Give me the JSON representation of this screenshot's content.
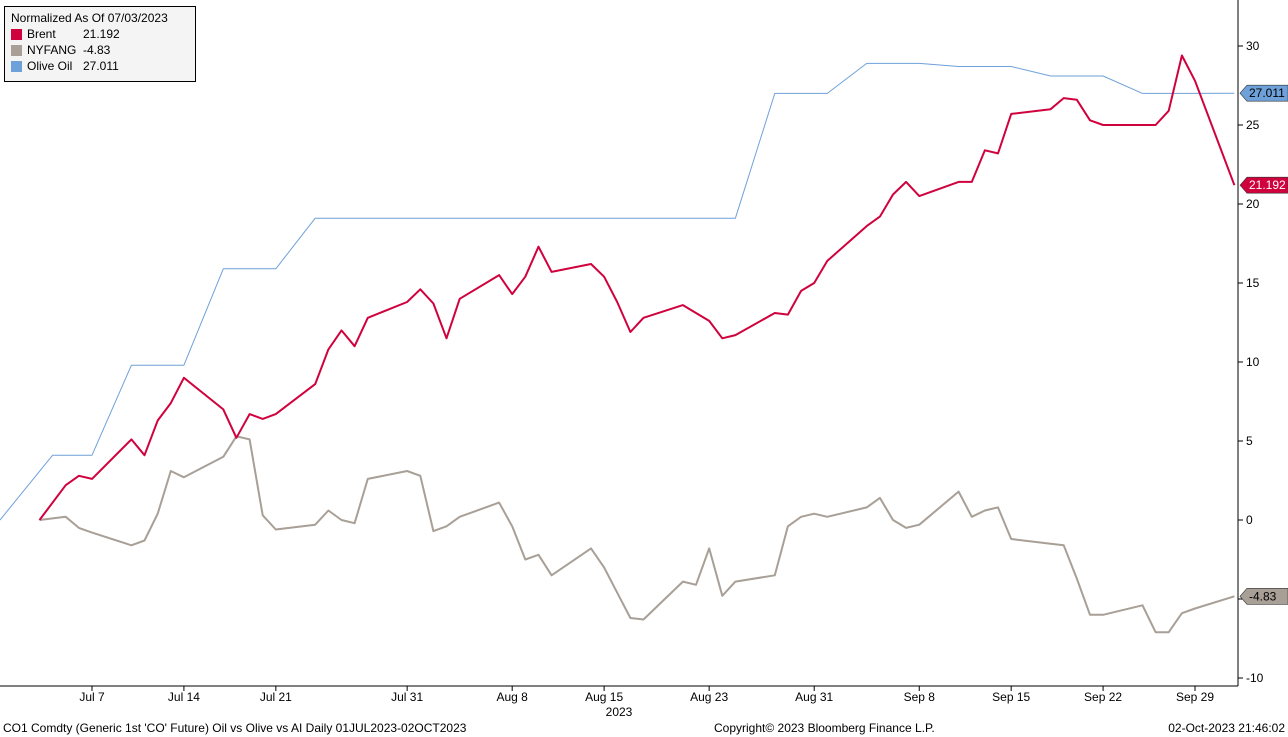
{
  "legend": {
    "title": "Normalized As Of 07/03/2023",
    "items": [
      {
        "name": "Brent",
        "value": "21.192",
        "color": "#d0023e"
      },
      {
        "name": "NYFANG",
        "value": "-4.83",
        "color": "#a89f96"
      },
      {
        "name": "Olive Oil",
        "value": "27.011",
        "color": "#6ea1d9"
      }
    ]
  },
  "footer": {
    "description": "CO1 Comdty (Generic 1st 'CO' Future) Oil vs Olive vs AI  Daily 01JUL2023-02OCT2023",
    "copyright": "Copyright© 2023 Bloomberg Finance L.P.",
    "timestamp": "02-Oct-2023 21:46:02"
  },
  "chart_data": {
    "type": "line",
    "title": "Normalized As Of 07/03/2023",
    "x_tick_labels": [
      "Jul 7",
      "Jul 14",
      "Jul 21",
      "Jul 31",
      "Aug 8",
      "Aug 15",
      "Aug 23",
      "Aug 31",
      "Sep 8",
      "Sep 15",
      "Sep 22",
      "Sep 29"
    ],
    "x_axis_year": "2023",
    "y_tick_labels": [
      "30",
      "25",
      "20",
      "15",
      "10",
      "5",
      "0",
      "-5",
      "-10"
    ],
    "ylim": [
      -10,
      30
    ],
    "y_axis_side": "right",
    "grid": false,
    "legend_position": "top-left",
    "series": [
      {
        "name": "Brent",
        "color": "#d0023e",
        "last_value": "21.192",
        "x": [
          "2023-07-03",
          "2023-07-05",
          "2023-07-06",
          "2023-07-07",
          "2023-07-10",
          "2023-07-11",
          "2023-07-12",
          "2023-07-13",
          "2023-07-14",
          "2023-07-17",
          "2023-07-18",
          "2023-07-19",
          "2023-07-20",
          "2023-07-21",
          "2023-07-24",
          "2023-07-25",
          "2023-07-26",
          "2023-07-27",
          "2023-07-28",
          "2023-07-31",
          "2023-08-01",
          "2023-08-02",
          "2023-08-03",
          "2023-08-04",
          "2023-08-07",
          "2023-08-08",
          "2023-08-09",
          "2023-08-10",
          "2023-08-11",
          "2023-08-14",
          "2023-08-15",
          "2023-08-16",
          "2023-08-17",
          "2023-08-18",
          "2023-08-21",
          "2023-08-22",
          "2023-08-23",
          "2023-08-24",
          "2023-08-25",
          "2023-08-28",
          "2023-08-29",
          "2023-08-30",
          "2023-08-31",
          "2023-09-01",
          "2023-09-04",
          "2023-09-05",
          "2023-09-06",
          "2023-09-07",
          "2023-09-08",
          "2023-09-11",
          "2023-09-12",
          "2023-09-13",
          "2023-09-14",
          "2023-09-15",
          "2023-09-18",
          "2023-09-19",
          "2023-09-20",
          "2023-09-21",
          "2023-09-22",
          "2023-09-25",
          "2023-09-26",
          "2023-09-27",
          "2023-09-28",
          "2023-09-29",
          "2023-10-02"
        ],
        "values": [
          0.0,
          2.2,
          2.8,
          2.6,
          5.1,
          4.1,
          6.3,
          7.4,
          9.0,
          7.0,
          5.2,
          6.7,
          6.4,
          6.7,
          8.6,
          10.8,
          12.0,
          11.0,
          12.8,
          13.8,
          14.6,
          13.7,
          11.5,
          14.0,
          15.5,
          14.3,
          15.4,
          17.3,
          15.7,
          16.2,
          15.4,
          13.8,
          11.9,
          12.8,
          13.6,
          13.1,
          12.6,
          11.5,
          11.7,
          13.1,
          13.0,
          14.5,
          15.0,
          16.4,
          18.6,
          19.2,
          20.6,
          21.4,
          20.5,
          21.4,
          21.4,
          23.4,
          23.2,
          25.7,
          26.0,
          26.7,
          26.6,
          25.3,
          25.0,
          25.0,
          25.0,
          25.9,
          29.4,
          27.8,
          21.192
        ]
      },
      {
        "name": "NYFANG",
        "color": "#a89f96",
        "last_value": "-4.83",
        "x": [
          "2023-07-03",
          "2023-07-05",
          "2023-07-06",
          "2023-07-07",
          "2023-07-10",
          "2023-07-11",
          "2023-07-12",
          "2023-07-13",
          "2023-07-14",
          "2023-07-17",
          "2023-07-18",
          "2023-07-19",
          "2023-07-20",
          "2023-07-21",
          "2023-07-24",
          "2023-07-25",
          "2023-07-26",
          "2023-07-27",
          "2023-07-28",
          "2023-07-31",
          "2023-08-01",
          "2023-08-02",
          "2023-08-03",
          "2023-08-04",
          "2023-08-07",
          "2023-08-08",
          "2023-08-09",
          "2023-08-10",
          "2023-08-11",
          "2023-08-14",
          "2023-08-15",
          "2023-08-16",
          "2023-08-17",
          "2023-08-18",
          "2023-08-21",
          "2023-08-22",
          "2023-08-23",
          "2023-08-24",
          "2023-08-25",
          "2023-08-28",
          "2023-08-29",
          "2023-08-30",
          "2023-08-31",
          "2023-09-01",
          "2023-09-04",
          "2023-09-05",
          "2023-09-06",
          "2023-09-07",
          "2023-09-08",
          "2023-09-11",
          "2023-09-12",
          "2023-09-13",
          "2023-09-14",
          "2023-09-15",
          "2023-09-18",
          "2023-09-19",
          "2023-09-20",
          "2023-09-21",
          "2023-09-22",
          "2023-09-25",
          "2023-09-26",
          "2023-09-27",
          "2023-09-28",
          "2023-09-29",
          "2023-10-02"
        ],
        "values": [
          0.0,
          0.2,
          -0.5,
          -0.8,
          -1.6,
          -1.3,
          0.4,
          3.1,
          2.7,
          4.0,
          5.3,
          5.1,
          0.3,
          -0.6,
          -0.3,
          0.6,
          0.0,
          -0.2,
          2.6,
          3.1,
          2.8,
          -0.7,
          -0.4,
          0.2,
          1.1,
          -0.4,
          -2.5,
          -2.2,
          -3.5,
          -1.8,
          -3.0,
          -4.6,
          -6.2,
          -6.3,
          -3.9,
          -4.1,
          -1.8,
          -4.8,
          -3.9,
          -3.5,
          -0.4,
          0.2,
          0.4,
          0.2,
          0.8,
          1.4,
          0.0,
          -0.5,
          -0.3,
          1.8,
          0.2,
          0.6,
          0.8,
          -1.2,
          -1.5,
          -1.6,
          -3.7,
          -6.0,
          -6.0,
          -5.4,
          -7.1,
          -7.1,
          -5.9,
          -5.6,
          -4.83
        ]
      },
      {
        "name": "Olive Oil",
        "color": "#6ea1d9",
        "last_value": "27.011",
        "x": [
          "2023-07-03",
          "2023-07-04",
          "2023-07-05",
          "2023-07-07",
          "2023-07-10",
          "2023-07-11",
          "2023-07-12",
          "2023-07-13",
          "2023-07-14",
          "2023-07-17",
          "2023-07-18",
          "2023-07-19",
          "2023-07-20",
          "2023-07-21",
          "2023-07-24",
          "2023-07-25",
          "2023-07-26",
          "2023-07-27",
          "2023-07-28",
          "2023-08-22",
          "2023-08-23",
          "2023-08-24",
          "2023-08-25",
          "2023-08-28",
          "2023-08-29",
          "2023-08-30",
          "2023-08-31",
          "2023-09-01",
          "2023-09-04",
          "2023-09-05",
          "2023-09-06",
          "2023-09-07",
          "2023-09-08",
          "2023-09-11",
          "2023-09-12",
          "2023-09-13",
          "2023-09-14",
          "2023-09-15",
          "2023-09-18",
          "2023-09-19",
          "2023-09-20",
          "2023-09-21",
          "2023-09-22",
          "2023-09-25",
          "2023-09-26",
          "2023-09-27",
          "2023-09-28",
          "2023-09-29",
          "2023-10-02"
        ],
        "values": [
          0.0,
          4.1,
          4.1,
          4.1,
          9.8,
          9.8,
          9.8,
          9.8,
          9.8,
          15.9,
          15.9,
          15.9,
          15.9,
          15.9,
          19.1,
          19.1,
          19.1,
          19.1,
          19.1,
          19.1,
          19.1,
          19.1,
          19.1,
          27.0,
          27.0,
          27.0,
          27.0,
          27.0,
          28.9,
          28.9,
          28.9,
          28.9,
          28.9,
          28.7,
          28.7,
          28.7,
          28.7,
          28.7,
          28.1,
          28.1,
          28.1,
          28.1,
          28.1,
          27.0,
          27.0,
          27.0,
          27.0,
          27.0,
          27.011
        ]
      }
    ]
  }
}
